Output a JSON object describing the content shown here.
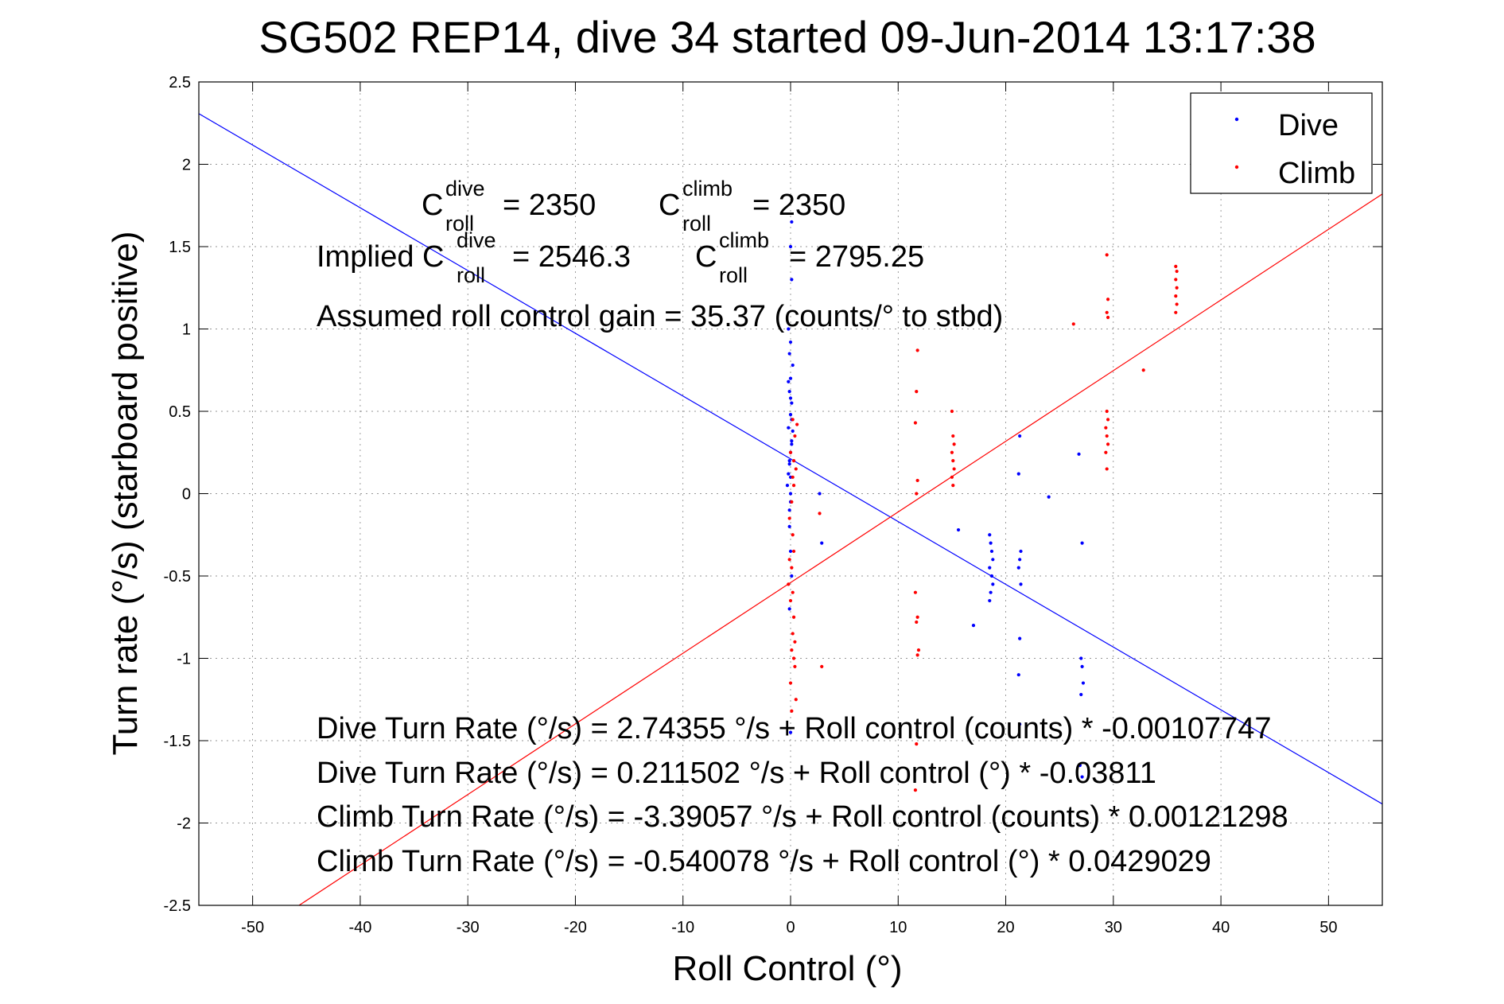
{
  "chart_data": {
    "type": "scatter",
    "title": "SG502 REP14, dive 34 started 09-Jun-2014 13:17:38",
    "xlabel": "Roll Control (°)",
    "ylabel": "Turn rate (°/s)  (starboard positive)",
    "xlim": [
      -55,
      55
    ],
    "ylim": [
      -2.5,
      2.5
    ],
    "xticks": [
      -50,
      -40,
      -30,
      -20,
      -10,
      0,
      10,
      20,
      30,
      40,
      50
    ],
    "yticks": [
      -2.5,
      -2,
      -1.5,
      -1,
      -0.5,
      0,
      0.5,
      1,
      1.5,
      2,
      2.5
    ],
    "grid": true,
    "legend_position": "top-right",
    "colors": {
      "dive": "#0000ff",
      "climb": "#ff0000"
    },
    "series": [
      {
        "name": "Dive",
        "points": [
          [
            -0.3,
            0.05
          ],
          [
            -0.2,
            0.12
          ],
          [
            -0.1,
            0.18
          ],
          [
            0.0,
            0.25
          ],
          [
            0.1,
            0.32
          ],
          [
            -0.2,
            0.4
          ],
          [
            0.0,
            0.48
          ],
          [
            0.1,
            0.55
          ],
          [
            -0.1,
            0.62
          ],
          [
            0.0,
            0.7
          ],
          [
            0.2,
            0.78
          ],
          [
            -0.1,
            0.85
          ],
          [
            0.0,
            0.92
          ],
          [
            -0.2,
            1.0
          ],
          [
            0.1,
            0.3
          ],
          [
            -0.1,
            0.2
          ],
          [
            0.0,
            0.1
          ],
          [
            0.0,
            0.0
          ],
          [
            0.0,
            -0.05
          ],
          [
            -0.1,
            -0.1
          ],
          [
            0.1,
            0.45
          ],
          [
            0.0,
            0.58
          ],
          [
            -0.2,
            0.68
          ],
          [
            0.2,
            0.38
          ],
          [
            -0.1,
            -0.2
          ],
          [
            0.0,
            -0.35
          ],
          [
            0.1,
            -0.5
          ],
          [
            -0.1,
            -0.7
          ],
          [
            0.0,
            -1.45
          ],
          [
            0.1,
            1.3
          ],
          [
            0.0,
            1.5
          ],
          [
            0.1,
            1.65
          ],
          [
            2.7,
            0.0
          ],
          [
            2.9,
            -0.3
          ],
          [
            17.0,
            -0.8
          ],
          [
            18.5,
            -0.25
          ],
          [
            18.6,
            -0.3
          ],
          [
            18.7,
            -0.35
          ],
          [
            18.8,
            -0.4
          ],
          [
            18.5,
            -0.45
          ],
          [
            18.7,
            -0.5
          ],
          [
            18.8,
            -0.55
          ],
          [
            18.6,
            -0.6
          ],
          [
            18.5,
            -0.65
          ],
          [
            21.3,
            0.35
          ],
          [
            21.2,
            0.12
          ],
          [
            21.4,
            -0.35
          ],
          [
            21.3,
            -0.4
          ],
          [
            21.2,
            -0.45
          ],
          [
            21.4,
            -0.55
          ],
          [
            21.3,
            -0.88
          ],
          [
            21.2,
            -1.1
          ],
          [
            21.3,
            -1.4
          ],
          [
            24.0,
            -0.02
          ],
          [
            26.8,
            0.24
          ],
          [
            27.1,
            -0.3
          ],
          [
            27.0,
            -1.0
          ],
          [
            27.1,
            -1.05
          ],
          [
            27.2,
            -1.15
          ],
          [
            27.0,
            -1.22
          ],
          [
            26.9,
            -1.65
          ],
          [
            27.1,
            -1.72
          ],
          [
            15.6,
            -0.22
          ]
        ]
      },
      {
        "name": "Climb",
        "points": [
          [
            0.2,
            0.45
          ],
          [
            0.4,
            0.35
          ],
          [
            0.0,
            0.25
          ],
          [
            0.3,
            0.2
          ],
          [
            0.5,
            0.15
          ],
          [
            0.2,
            0.1
          ],
          [
            0.1,
            -0.05
          ],
          [
            -0.1,
            -0.15
          ],
          [
            0.2,
            -0.25
          ],
          [
            0.3,
            -0.35
          ],
          [
            0.1,
            -0.45
          ],
          [
            -0.2,
            -0.55
          ],
          [
            0.0,
            -0.65
          ],
          [
            0.3,
            -0.75
          ],
          [
            0.2,
            -0.85
          ],
          [
            0.1,
            -0.95
          ],
          [
            0.4,
            -1.05
          ],
          [
            0.0,
            -1.15
          ],
          [
            0.5,
            -1.25
          ],
          [
            0.3,
            0.05
          ],
          [
            0.6,
            0.42
          ],
          [
            0.2,
            -0.6
          ],
          [
            0.4,
            -0.9
          ],
          [
            0.1,
            -1.32
          ],
          [
            -0.1,
            -0.4
          ],
          [
            0.3,
            -1.0
          ],
          [
            2.9,
            -1.05
          ],
          [
            2.7,
            -0.12
          ],
          [
            11.8,
            0.87
          ],
          [
            11.7,
            0.62
          ],
          [
            11.6,
            0.43
          ],
          [
            11.8,
            0.08
          ],
          [
            11.7,
            0.0
          ],
          [
            11.6,
            -0.6
          ],
          [
            11.8,
            -0.75
          ],
          [
            11.7,
            -0.78
          ],
          [
            11.9,
            -0.95
          ],
          [
            11.8,
            -0.98
          ],
          [
            11.7,
            -1.52
          ],
          [
            11.6,
            -1.8
          ],
          [
            15.0,
            0.5
          ],
          [
            15.1,
            0.35
          ],
          [
            15.2,
            0.3
          ],
          [
            15.0,
            0.25
          ],
          [
            15.1,
            0.2
          ],
          [
            15.2,
            0.15
          ],
          [
            15.0,
            0.1
          ],
          [
            15.1,
            0.05
          ],
          [
            26.3,
            1.03
          ],
          [
            29.4,
            1.45
          ],
          [
            29.5,
            1.18
          ],
          [
            29.4,
            1.1
          ],
          [
            29.5,
            1.07
          ],
          [
            29.4,
            0.5
          ],
          [
            29.5,
            0.45
          ],
          [
            29.3,
            0.4
          ],
          [
            29.4,
            0.35
          ],
          [
            29.5,
            0.3
          ],
          [
            29.3,
            0.25
          ],
          [
            29.4,
            0.15
          ],
          [
            32.8,
            0.75
          ],
          [
            35.8,
            1.38
          ],
          [
            35.9,
            1.35
          ],
          [
            35.8,
            1.3
          ],
          [
            35.9,
            1.25
          ],
          [
            35.8,
            1.2
          ],
          [
            35.9,
            1.15
          ],
          [
            35.8,
            1.1
          ]
        ]
      }
    ],
    "fit_lines": [
      {
        "series": "Dive",
        "intercept": 0.211502,
        "slope": -0.03811
      },
      {
        "series": "Climb",
        "intercept": -0.540078,
        "slope": 0.0429029
      }
    ],
    "annotations": {
      "c_roll_base": "C",
      "roll_sub": "roll",
      "dive_sup": "dive",
      "climb_sup": "climb",
      "c_dive_value": "= 2350",
      "c_climb_value": "= 2350",
      "implied_prefix": "Implied C",
      "implied_dive_value": "= 2546.3",
      "implied_climb_value": "= 2795.25",
      "gain": "Assumed roll control gain = 35.37 (counts/° to stbd)",
      "eq1": "Dive Turn Rate (°/s) = 2.74355 °/s + Roll control (counts) * -0.00107747",
      "eq2": "Dive Turn Rate (°/s) = 0.211502 °/s + Roll control (°) * -0.03811",
      "eq3": "Climb Turn Rate (°/s) = -3.39057 °/s + Roll control (counts) * 0.00121298",
      "eq4": "Climb Turn Rate (°/s) = -0.540078 °/s + Roll control (°) * 0.0429029"
    }
  }
}
